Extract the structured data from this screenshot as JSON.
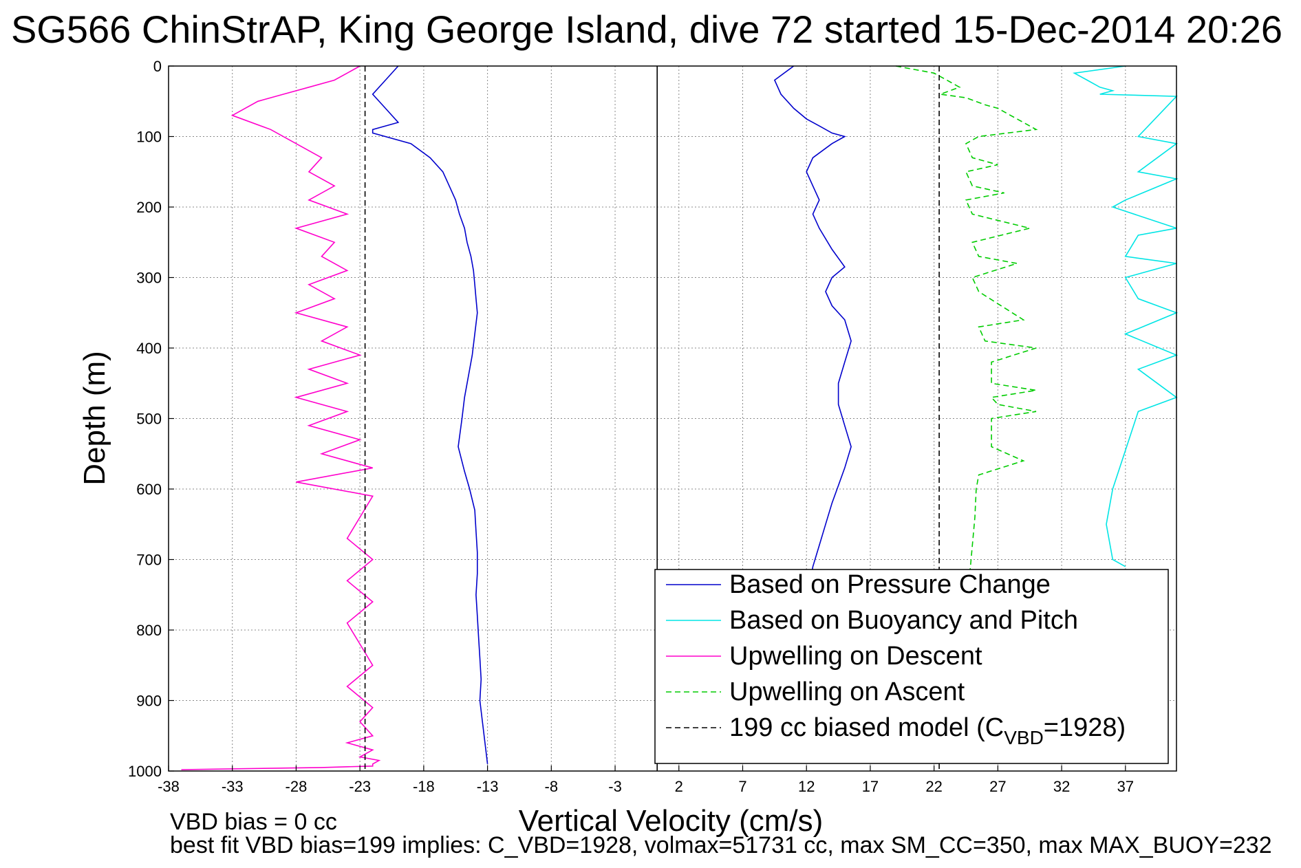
{
  "chart_data": {
    "type": "line",
    "title": "SG566 ChinStrAP, King George Island, dive 72 started 15-Dec-2014 20:26",
    "xlabel": "Vertical Velocity (cm/s)",
    "ylabel": "Depth (m)",
    "xlim": [
      -38,
      41
    ],
    "ylim": [
      0,
      1000
    ],
    "y_reversed": true,
    "grid": true,
    "xticks": [
      -38,
      -33,
      -28,
      -23,
      -18,
      -13,
      -8,
      -3,
      2,
      7,
      12,
      17,
      22,
      27,
      32,
      37
    ],
    "yticks": [
      0,
      100,
      200,
      300,
      400,
      500,
      600,
      700,
      800,
      900,
      1000
    ],
    "legend": {
      "position": "bottom-right",
      "entries": [
        {
          "label": "Based on Pressure Change",
          "color": "#0000cc",
          "dash": "solid"
        },
        {
          "label": "Based on Buoyancy and Pitch",
          "color": "#00e5e5",
          "dash": "solid"
        },
        {
          "label": "Upwelling on Descent",
          "color": "#ff00cc",
          "dash": "solid"
        },
        {
          "label": "Upwelling on Ascent",
          "color": "#00cc00",
          "dash": "dashed"
        },
        {
          "label": "199 cc biased model (C",
          "sub": "VBD",
          "suffix": "=1928)",
          "color": "#000000",
          "dash": "dashed"
        }
      ]
    },
    "series": [
      {
        "color": "#0000cc",
        "dash": "solid",
        "x": [
          -20,
          -21,
          -22,
          -21,
          -20,
          -22,
          -22,
          -19,
          -17.5,
          -16.5,
          -16,
          -15.5,
          -15.2,
          -14.8,
          -14.6,
          -14.3,
          -14.1,
          -14,
          -13.9,
          -13.8,
          -14,
          -14.2,
          -14.5,
          -14.8,
          -15,
          -15.3,
          -14.8,
          -14.4,
          -14,
          -13.9,
          -13.8,
          -13.8,
          -13.9,
          -13.8,
          -13.7,
          -13.6,
          -13.5,
          -13.6,
          -13.4,
          -13.2,
          -13
        ],
        "y": [
          0,
          20,
          40,
          60,
          80,
          90,
          95,
          110,
          130,
          150,
          170,
          190,
          210,
          230,
          250,
          270,
          290,
          310,
          330,
          350,
          380,
          410,
          440,
          470,
          500,
          540,
          575,
          600,
          630,
          660,
          690,
          720,
          750,
          780,
          810,
          840,
          870,
          900,
          930,
          960,
          990
        ]
      },
      {
        "color": "#0000cc",
        "dash": "solid",
        "x": [
          11,
          9.5,
          10,
          11,
          12,
          13,
          14,
          15,
          14,
          12.5,
          12,
          12.5,
          13,
          12.5,
          13,
          14,
          15,
          14,
          13.5,
          14,
          15,
          15.5,
          15,
          14.5,
          14.5,
          15,
          15.5,
          15,
          14.5,
          14,
          13.5,
          13,
          12.5,
          12.3
        ],
        "y": [
          0,
          20,
          40,
          60,
          75,
          85,
          95,
          100,
          110,
          130,
          150,
          170,
          190,
          210,
          230,
          260,
          285,
          300,
          320,
          340,
          360,
          390,
          420,
          450,
          480,
          510,
          540,
          570,
          595,
          620,
          650,
          680,
          710,
          730
        ]
      },
      {
        "color": "#ff00cc",
        "dash": "solid",
        "x": [
          -23,
          -24,
          -25,
          -27,
          -29,
          -31,
          -33,
          -30,
          -28,
          -26,
          -27,
          -25,
          -27,
          -24,
          -28,
          -25,
          -26,
          -24,
          -27,
          -25,
          -28,
          -24,
          -26,
          -23,
          -27,
          -24,
          -28,
          -24,
          -27,
          -23,
          -26,
          -22,
          -28,
          -22,
          -23,
          -24,
          -22,
          -24,
          -22,
          -24,
          -23,
          -22,
          -24,
          -22,
          -23,
          -22,
          -24,
          -22,
          -23,
          -21.5,
          -22,
          -22,
          -26,
          -37
        ],
        "y": [
          0,
          10,
          20,
          30,
          40,
          50,
          70,
          90,
          110,
          130,
          150,
          170,
          190,
          210,
          230,
          250,
          270,
          290,
          310,
          330,
          350,
          370,
          390,
          410,
          430,
          450,
          470,
          490,
          510,
          530,
          550,
          570,
          590,
          610,
          640,
          670,
          700,
          730,
          760,
          790,
          820,
          850,
          880,
          910,
          930,
          950,
          960,
          970,
          980,
          985,
          990,
          993,
          995,
          998
        ]
      },
      {
        "color": "#00cc00",
        "dash": "dashed",
        "x": [
          19,
          22,
          23,
          24,
          22.5,
          24.5,
          26,
          27,
          28,
          29,
          30,
          25.5,
          24.5,
          25,
          27,
          24.5,
          25,
          27.5,
          24.5,
          25,
          29.5,
          25,
          25.5,
          28.5,
          25,
          25.5,
          29,
          25.5,
          26,
          30,
          26.5,
          26.5,
          30,
          26.5,
          27,
          30,
          26.5,
          26.5,
          29,
          25.5,
          25.3,
          25.2,
          25,
          24.8,
          24.9,
          24.8,
          24.9
        ],
        "y": [
          0,
          10,
          20,
          30,
          40,
          45,
          55,
          60,
          70,
          80,
          90,
          100,
          110,
          130,
          140,
          150,
          170,
          180,
          190,
          210,
          230,
          250,
          270,
          280,
          300,
          320,
          360,
          370,
          390,
          400,
          420,
          450,
          460,
          470,
          480,
          490,
          500,
          540,
          560,
          580,
          600,
          640,
          680,
          720,
          760,
          850,
          990
        ]
      },
      {
        "color": "#00e5e5",
        "dash": "solid",
        "x": [
          37,
          33,
          34,
          35,
          36,
          35,
          41,
          38,
          41,
          38,
          41,
          37,
          36,
          41,
          38,
          37,
          41,
          37,
          38,
          41,
          37,
          41,
          38,
          41,
          38,
          36,
          35.5,
          36,
          37
        ],
        "y": [
          0,
          10,
          20,
          30,
          35,
          40,
          43,
          100,
          110,
          150,
          160,
          190,
          200,
          230,
          240,
          270,
          280,
          300,
          330,
          350,
          380,
          410,
          430,
          470,
          490,
          600,
          650,
          700,
          710
        ]
      },
      {
        "color": "#000000",
        "dash": "dashed",
        "x": [
          -22.6,
          -22.6
        ],
        "y": [
          0,
          1000
        ]
      },
      {
        "color": "#000000",
        "dash": "dashed",
        "x": [
          22.4,
          22.4
        ],
        "y": [
          0,
          1000
        ]
      },
      {
        "color": "#000000",
        "dash": "solid",
        "x": [
          0.3,
          0.3
        ],
        "y": [
          0,
          1000
        ]
      }
    ],
    "footer": [
      "VBD bias = 0 cc",
      "best fit VBD bias=199 implies: C_VBD=1928, volmax=51731 cc, max SM_CC=350, max MAX_BUOY=232"
    ]
  }
}
